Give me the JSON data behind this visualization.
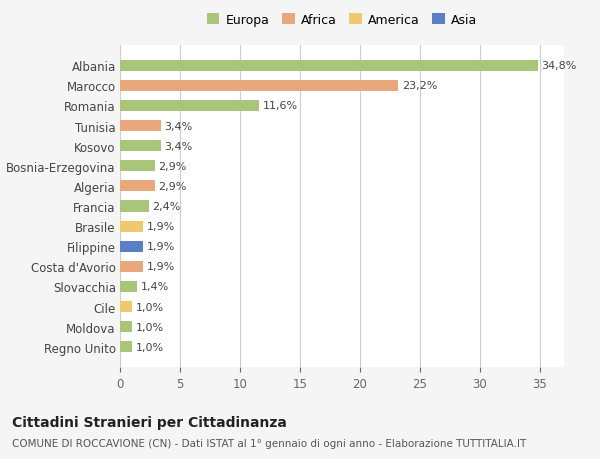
{
  "categories": [
    "Albania",
    "Marocco",
    "Romania",
    "Tunisia",
    "Kosovo",
    "Bosnia-Erzegovina",
    "Algeria",
    "Francia",
    "Brasile",
    "Filippine",
    "Costa d'Avorio",
    "Slovacchia",
    "Cile",
    "Moldova",
    "Regno Unito"
  ],
  "values": [
    34.8,
    23.2,
    11.6,
    3.4,
    3.4,
    2.9,
    2.9,
    2.4,
    1.9,
    1.9,
    1.9,
    1.4,
    1.0,
    1.0,
    1.0
  ],
  "labels": [
    "34,8%",
    "23,2%",
    "11,6%",
    "3,4%",
    "3,4%",
    "2,9%",
    "2,9%",
    "2,4%",
    "1,9%",
    "1,9%",
    "1,9%",
    "1,4%",
    "1,0%",
    "1,0%",
    "1,0%"
  ],
  "continents": [
    "Europa",
    "Africa",
    "Europa",
    "Africa",
    "Europa",
    "Europa",
    "Africa",
    "Europa",
    "America",
    "Asia",
    "Africa",
    "Europa",
    "America",
    "Europa",
    "Europa"
  ],
  "continent_colors": {
    "Europa": "#a8c57a",
    "Africa": "#e8a87c",
    "America": "#f0c96e",
    "Asia": "#5b7fc4"
  },
  "legend_order": [
    "Europa",
    "Africa",
    "America",
    "Asia"
  ],
  "title": "Cittadini Stranieri per Cittadinanza",
  "subtitle": "COMUNE DI ROCCAVIONE (CN) - Dati ISTAT al 1° gennaio di ogni anno - Elaborazione TUTTITALIA.IT",
  "xlim": [
    0,
    37
  ],
  "xticks": [
    0,
    5,
    10,
    15,
    20,
    25,
    30,
    35
  ],
  "background_color": "#f5f5f5",
  "bar_background": "#ffffff",
  "grid_color": "#cccccc",
  "label_fontsize": 8,
  "title_fontsize": 10,
  "subtitle_fontsize": 7.5,
  "ytick_fontsize": 8.5,
  "xtick_fontsize": 8.5,
  "legend_fontsize": 9
}
